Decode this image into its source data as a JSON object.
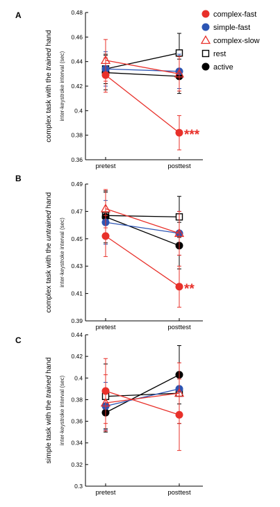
{
  "legend": [
    {
      "name": "complex-fast",
      "color": "#e8302a",
      "marker": "filled-circle"
    },
    {
      "name": "simple-fast",
      "color": "#2c55b4",
      "marker": "filled-circle"
    },
    {
      "name": "complex-slow",
      "color": "#e8302a",
      "marker": "open-triangle"
    },
    {
      "name": "rest",
      "color": "#000000",
      "marker": "open-square"
    },
    {
      "name": "active",
      "color": "#000000",
      "marker": "filled-circle"
    }
  ],
  "chart_data": [
    {
      "type": "line",
      "panel_letter": "A",
      "side_label_parts": [
        {
          "text": "complex task with the ",
          "italic": false
        },
        {
          "text": "trained",
          "italic": true
        },
        {
          "text": " hand",
          "italic": false
        }
      ],
      "ylabel": "inter-keystroke interval (sec)",
      "categories": [
        "pretest",
        "posttest"
      ],
      "ylim": [
        0.36,
        0.48
      ],
      "yticks": [
        0.36,
        0.38,
        0.4,
        0.42,
        0.44,
        0.46,
        0.48
      ],
      "ytick_labels": [
        "0.36",
        "0.38",
        "0.4",
        "0.42",
        "0.44",
        "0.46",
        "0.48"
      ],
      "series": [
        {
          "name": "rest",
          "values": [
            0.434,
            0.447
          ],
          "errors": [
            0.012,
            0.016
          ]
        },
        {
          "name": "active",
          "values": [
            0.431,
            0.428
          ],
          "errors": [
            0.014,
            0.014
          ]
        },
        {
          "name": "simple-fast",
          "values": [
            0.434,
            0.432
          ],
          "errors": [
            0.014,
            0.014
          ]
        },
        {
          "name": "complex-slow",
          "values": [
            0.441,
            0.43
          ],
          "errors": [
            0.017,
            0.014
          ]
        },
        {
          "name": "complex-fast",
          "values": [
            0.429,
            0.382
          ],
          "errors": [
            0.014,
            0.014
          ]
        }
      ],
      "annotation": {
        "text": "***",
        "color": "#e8302a"
      }
    },
    {
      "type": "line",
      "panel_letter": "B",
      "side_label_parts": [
        {
          "text": "complex task with the ",
          "italic": false
        },
        {
          "text": "untrained",
          "italic": true
        },
        {
          "text": " hand",
          "italic": false
        }
      ],
      "ylabel": "inter-keystroke interval (sec)",
      "categories": [
        "pretest",
        "posttest"
      ],
      "ylim": [
        0.39,
        0.49
      ],
      "yticks": [
        0.39,
        0.41,
        0.43,
        0.45,
        0.47,
        0.49
      ],
      "ytick_labels": [
        "0.39",
        "0.41",
        "0.43",
        "0.45",
        "0.47",
        "0.49"
      ],
      "series": [
        {
          "name": "rest",
          "values": [
            0.467,
            0.466
          ],
          "errors": [
            0.017,
            0.015
          ]
        },
        {
          "name": "active",
          "values": [
            0.466,
            0.445
          ],
          "errors": [
            0.019,
            0.017
          ]
        },
        {
          "name": "simple-fast",
          "values": [
            0.462,
            0.454
          ],
          "errors": [
            0.016,
            0.016
          ]
        },
        {
          "name": "complex-slow",
          "values": [
            0.472,
            0.454
          ],
          "errors": [
            0.014,
            0.016
          ]
        },
        {
          "name": "complex-fast",
          "values": [
            0.452,
            0.415
          ],
          "errors": [
            0.015,
            0.015
          ]
        }
      ],
      "annotation": {
        "text": "**",
        "color": "#e8302a"
      }
    },
    {
      "type": "line",
      "panel_letter": "C",
      "side_label_parts": [
        {
          "text": "simple task with the ",
          "italic": false
        },
        {
          "text": "trained",
          "italic": true
        },
        {
          "text": " hand",
          "italic": false
        }
      ],
      "ylabel": "inter-keystroke interval (sec)",
      "categories": [
        "pretest",
        "posttest"
      ],
      "ylim": [
        0.3,
        0.44
      ],
      "yticks": [
        0.3,
        0.32,
        0.34,
        0.36,
        0.38,
        0.4,
        0.42,
        0.44
      ],
      "ytick_labels": [
        "0.3",
        "0.32",
        "0.34",
        "0.36",
        "0.38",
        "0.4",
        "0.42",
        "0.44"
      ],
      "series": [
        {
          "name": "rest",
          "values": [
            0.383,
            0.386
          ],
          "errors": [
            0.03,
            0.028
          ]
        },
        {
          "name": "active",
          "values": [
            0.368,
            0.403
          ],
          "errors": [
            0.018,
            0.027
          ]
        },
        {
          "name": "simple-fast",
          "values": [
            0.374,
            0.39
          ],
          "errors": [
            0.022,
            0.024
          ]
        },
        {
          "name": "complex-slow",
          "values": [
            0.377,
            0.386
          ],
          "errors": [
            0.026,
            0.028
          ]
        },
        {
          "name": "complex-fast",
          "values": [
            0.388,
            0.366
          ],
          "errors": [
            0.03,
            0.033
          ]
        }
      ],
      "annotation": null
    }
  ]
}
